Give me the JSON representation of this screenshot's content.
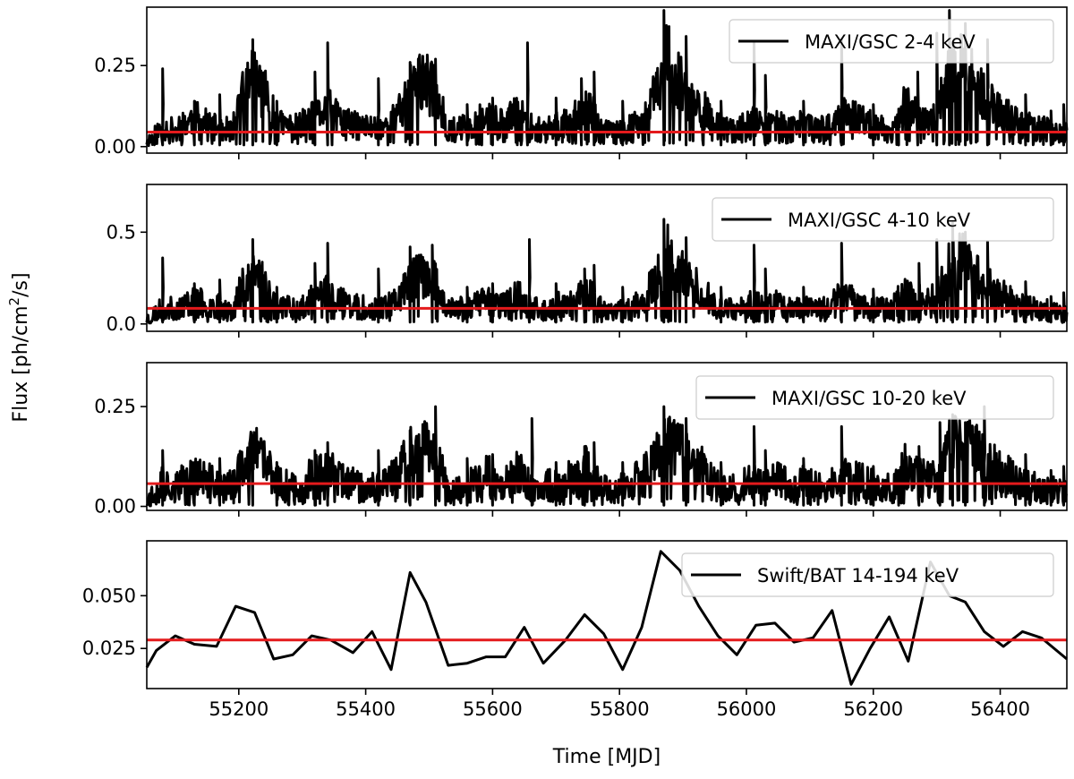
{
  "figure": {
    "xlabel": "Time [MJD]",
    "ylabel_prefix": "Flux [ph/cm",
    "ylabel_sup": "2",
    "ylabel_suffix": "/s]"
  },
  "chart_data": [
    {
      "type": "line",
      "legend": "MAXI/GSC 2-4 keV",
      "xlim": [
        55055,
        56505
      ],
      "ylim": [
        -0.02,
        0.43
      ],
      "xticks": [
        55200,
        55400,
        55600,
        55800,
        56000,
        56200,
        56400
      ],
      "yticks": [
        0.0,
        0.25
      ],
      "ytick_labels": [
        "0.00",
        "0.25"
      ],
      "mean": 0.045,
      "base": 0.05,
      "noise": 0.04,
      "floor": 0.005,
      "seed": 11,
      "x": [
        55060,
        55080,
        55100,
        55130,
        55160,
        55190,
        55205,
        55222,
        55240,
        55260,
        55290,
        55320,
        55340,
        55360,
        55390,
        55420,
        55450,
        55470,
        55490,
        55510,
        55530,
        55560,
        55590,
        55620,
        55640,
        55660,
        55680,
        55700,
        55730,
        55750,
        55770,
        55790,
        55810,
        55840,
        55860,
        55875,
        55890,
        55910,
        55930,
        55950,
        55970,
        55990,
        56010,
        56030,
        56050,
        56070,
        56090,
        56110,
        56130,
        56150,
        56170,
        56190,
        56210,
        56230,
        56250,
        56280,
        56300,
        56320,
        56340,
        56360,
        56380,
        56400,
        56420,
        56450,
        56480,
        56500
      ],
      "y": [
        0.02,
        0.06,
        0.05,
        0.09,
        0.06,
        0.05,
        0.15,
        0.22,
        0.17,
        0.07,
        0.06,
        0.09,
        0.12,
        0.08,
        0.06,
        0.06,
        0.09,
        0.18,
        0.2,
        0.17,
        0.05,
        0.06,
        0.09,
        0.07,
        0.11,
        0.06,
        0.05,
        0.07,
        0.09,
        0.13,
        0.06,
        0.04,
        0.05,
        0.09,
        0.17,
        0.27,
        0.21,
        0.15,
        0.12,
        0.07,
        0.05,
        0.06,
        0.08,
        0.06,
        0.08,
        0.05,
        0.07,
        0.05,
        0.06,
        0.1,
        0.09,
        0.07,
        0.06,
        0.05,
        0.13,
        0.08,
        0.1,
        0.21,
        0.24,
        0.19,
        0.14,
        0.11,
        0.08,
        0.06,
        0.05,
        0.04
      ],
      "spikes": [
        [
          55080,
          0.24
        ],
        [
          55130,
          0.14
        ],
        [
          55170,
          0.16
        ],
        [
          55222,
          0.33
        ],
        [
          55260,
          0.14
        ],
        [
          55320,
          0.23
        ],
        [
          55340,
          0.32
        ],
        [
          55420,
          0.21
        ],
        [
          55470,
          0.26
        ],
        [
          55510,
          0.27
        ],
        [
          55560,
          0.13
        ],
        [
          55600,
          0.15
        ],
        [
          55655,
          0.32
        ],
        [
          55700,
          0.15
        ],
        [
          55740,
          0.21
        ],
        [
          55760,
          0.23
        ],
        [
          55805,
          0.14
        ],
        [
          55870,
          0.42
        ],
        [
          55905,
          0.34
        ],
        [
          55960,
          0.14
        ],
        [
          56012,
          0.32
        ],
        [
          56030,
          0.22
        ],
        [
          56090,
          0.14
        ],
        [
          56150,
          0.33
        ],
        [
          56200,
          0.13
        ],
        [
          56240,
          0.11
        ],
        [
          56270,
          0.23
        ],
        [
          56300,
          0.35
        ],
        [
          56320,
          0.42
        ],
        [
          56345,
          0.38
        ],
        [
          56380,
          0.33
        ],
        [
          56440,
          0.16
        ],
        [
          56480,
          0.11
        ],
        [
          56500,
          0.13
        ]
      ]
    },
    {
      "type": "line",
      "legend": "MAXI/GSC 4-10 keV",
      "xlim": [
        55055,
        56505
      ],
      "ylim": [
        -0.04,
        0.76
      ],
      "xticks": [
        55200,
        55400,
        55600,
        55800,
        56000,
        56200,
        56400
      ],
      "yticks": [
        0.0,
        0.5
      ],
      "ytick_labels": [
        "0.0",
        "0.5"
      ],
      "mean": 0.085,
      "base": 0.09,
      "noise": 0.07,
      "floor": 0.01,
      "seed": 23,
      "x": [
        55060,
        55080,
        55100,
        55130,
        55160,
        55190,
        55205,
        55222,
        55240,
        55260,
        55290,
        55320,
        55340,
        55360,
        55390,
        55420,
        55450,
        55470,
        55490,
        55510,
        55530,
        55560,
        55590,
        55620,
        55640,
        55660,
        55680,
        55700,
        55730,
        55750,
        55770,
        55790,
        55810,
        55840,
        55860,
        55875,
        55890,
        55910,
        55930,
        55950,
        55970,
        55990,
        56010,
        56030,
        56050,
        56070,
        56090,
        56110,
        56130,
        56150,
        56170,
        56190,
        56210,
        56230,
        56250,
        56280,
        56300,
        56320,
        56340,
        56360,
        56380,
        56400,
        56420,
        56450,
        56480,
        56500
      ],
      "y": [
        0.03,
        0.09,
        0.08,
        0.13,
        0.1,
        0.08,
        0.2,
        0.3,
        0.24,
        0.1,
        0.09,
        0.14,
        0.17,
        0.12,
        0.09,
        0.09,
        0.13,
        0.24,
        0.27,
        0.22,
        0.08,
        0.09,
        0.13,
        0.1,
        0.16,
        0.09,
        0.08,
        0.1,
        0.13,
        0.18,
        0.09,
        0.06,
        0.08,
        0.14,
        0.25,
        0.38,
        0.3,
        0.22,
        0.18,
        0.1,
        0.08,
        0.09,
        0.12,
        0.09,
        0.12,
        0.08,
        0.1,
        0.08,
        0.09,
        0.15,
        0.13,
        0.1,
        0.09,
        0.08,
        0.19,
        0.12,
        0.15,
        0.3,
        0.34,
        0.27,
        0.2,
        0.16,
        0.12,
        0.09,
        0.07,
        0.06
      ],
      "spikes": [
        [
          55080,
          0.36
        ],
        [
          55130,
          0.22
        ],
        [
          55170,
          0.24
        ],
        [
          55222,
          0.46
        ],
        [
          55260,
          0.2
        ],
        [
          55320,
          0.33
        ],
        [
          55340,
          0.44
        ],
        [
          55420,
          0.3
        ],
        [
          55470,
          0.42
        ],
        [
          55505,
          0.43
        ],
        [
          55560,
          0.2
        ],
        [
          55600,
          0.22
        ],
        [
          55658,
          0.46
        ],
        [
          55700,
          0.22
        ],
        [
          55745,
          0.3
        ],
        [
          55760,
          0.32
        ],
        [
          55805,
          0.2
        ],
        [
          55870,
          0.57
        ],
        [
          55905,
          0.47
        ],
        [
          55960,
          0.2
        ],
        [
          56012,
          0.43
        ],
        [
          56030,
          0.3
        ],
        [
          56090,
          0.2
        ],
        [
          56150,
          0.44
        ],
        [
          56200,
          0.19
        ],
        [
          56240,
          0.17
        ],
        [
          56272,
          0.33
        ],
        [
          56300,
          0.46
        ],
        [
          56325,
          0.55
        ],
        [
          56345,
          0.5
        ],
        [
          56380,
          0.45
        ],
        [
          56440,
          0.23
        ],
        [
          56480,
          0.15
        ],
        [
          56500,
          0.17
        ]
      ]
    },
    {
      "type": "line",
      "legend": "MAXI/GSC 10-20 keV",
      "xlim": [
        55055,
        56505
      ],
      "ylim": [
        -0.01,
        0.36
      ],
      "xticks": [
        55200,
        55400,
        55600,
        55800,
        56000,
        56200,
        56400
      ],
      "yticks": [
        0.0,
        0.25
      ],
      "ytick_labels": [
        "0.00",
        "0.25"
      ],
      "mean": 0.057,
      "base": 0.06,
      "noise": 0.045,
      "floor": 0.003,
      "seed": 37,
      "x": [
        55060,
        55080,
        55100,
        55130,
        55160,
        55190,
        55205,
        55222,
        55240,
        55260,
        55290,
        55320,
        55340,
        55360,
        55390,
        55420,
        55450,
        55470,
        55490,
        55510,
        55530,
        55560,
        55590,
        55620,
        55640,
        55660,
        55680,
        55700,
        55730,
        55750,
        55770,
        55790,
        55810,
        55840,
        55860,
        55875,
        55890,
        55910,
        55930,
        55950,
        55970,
        55990,
        56010,
        56030,
        56050,
        56070,
        56090,
        56110,
        56130,
        56150,
        56170,
        56190,
        56210,
        56230,
        56250,
        56280,
        56300,
        56320,
        56340,
        56360,
        56380,
        56400,
        56420,
        56450,
        56480,
        56500
      ],
      "y": [
        0.02,
        0.06,
        0.05,
        0.08,
        0.06,
        0.05,
        0.1,
        0.14,
        0.11,
        0.06,
        0.05,
        0.08,
        0.09,
        0.07,
        0.05,
        0.05,
        0.08,
        0.13,
        0.15,
        0.12,
        0.05,
        0.05,
        0.08,
        0.06,
        0.09,
        0.05,
        0.05,
        0.06,
        0.08,
        0.1,
        0.05,
        0.04,
        0.05,
        0.08,
        0.13,
        0.18,
        0.15,
        0.12,
        0.1,
        0.06,
        0.05,
        0.05,
        0.07,
        0.05,
        0.07,
        0.05,
        0.06,
        0.05,
        0.05,
        0.08,
        0.07,
        0.06,
        0.05,
        0.05,
        0.1,
        0.07,
        0.08,
        0.15,
        0.17,
        0.14,
        0.11,
        0.09,
        0.07,
        0.05,
        0.04,
        0.04
      ],
      "spikes": [
        [
          55080,
          0.14
        ],
        [
          55130,
          0.11
        ],
        [
          55170,
          0.12
        ],
        [
          55222,
          0.17
        ],
        [
          55260,
          0.11
        ],
        [
          55320,
          0.14
        ],
        [
          55340,
          0.16
        ],
        [
          55420,
          0.14
        ],
        [
          55470,
          0.19
        ],
        [
          55510,
          0.25
        ],
        [
          55560,
          0.12
        ],
        [
          55600,
          0.13
        ],
        [
          55662,
          0.22
        ],
        [
          55700,
          0.11
        ],
        [
          55745,
          0.15
        ],
        [
          55760,
          0.16
        ],
        [
          55805,
          0.11
        ],
        [
          55870,
          0.25
        ],
        [
          55905,
          0.22
        ],
        [
          55960,
          0.11
        ],
        [
          56012,
          0.2
        ],
        [
          56030,
          0.14
        ],
        [
          56090,
          0.12
        ],
        [
          56150,
          0.2
        ],
        [
          56200,
          0.1
        ],
        [
          56240,
          0.09
        ],
        [
          56272,
          0.15
        ],
        [
          56305,
          0.21
        ],
        [
          56325,
          0.23
        ],
        [
          56345,
          0.21
        ],
        [
          56375,
          0.25
        ],
        [
          56440,
          0.13
        ],
        [
          56480,
          0.09
        ],
        [
          56500,
          0.1
        ]
      ]
    },
    {
      "type": "line",
      "legend": "Swift/BAT 14-194 keV",
      "xlim": [
        55055,
        56505
      ],
      "ylim": [
        0.006,
        0.076
      ],
      "xticks": [
        55200,
        55400,
        55600,
        55800,
        56000,
        56200,
        56400
      ],
      "xtick_labels": [
        "55200",
        "55400",
        "55600",
        "55800",
        "56000",
        "56200",
        "56400"
      ],
      "yticks": [
        0.025,
        0.05
      ],
      "ytick_labels": [
        "0.025",
        "0.050"
      ],
      "mean": 0.029,
      "x": [
        55055,
        55070,
        55100,
        55130,
        55165,
        55195,
        55225,
        55255,
        55285,
        55315,
        55345,
        55380,
        55410,
        55440,
        55470,
        55495,
        55530,
        55560,
        55590,
        55620,
        55650,
        55680,
        55715,
        55745,
        55775,
        55805,
        55835,
        55865,
        55895,
        55925,
        55955,
        55985,
        56015,
        56045,
        56075,
        56105,
        56135,
        56165,
        56195,
        56225,
        56255,
        56290,
        56320,
        56345,
        56375,
        56405,
        56435,
        56465,
        56505
      ],
      "y": [
        0.016,
        0.024,
        0.031,
        0.027,
        0.026,
        0.045,
        0.042,
        0.02,
        0.022,
        0.031,
        0.029,
        0.023,
        0.033,
        0.015,
        0.061,
        0.047,
        0.017,
        0.018,
        0.021,
        0.021,
        0.035,
        0.018,
        0.029,
        0.041,
        0.032,
        0.015,
        0.035,
        0.071,
        0.062,
        0.045,
        0.031,
        0.022,
        0.036,
        0.037,
        0.028,
        0.03,
        0.043,
        0.008,
        0.025,
        0.04,
        0.019,
        0.066,
        0.05,
        0.047,
        0.033,
        0.026,
        0.033,
        0.03,
        0.02
      ]
    }
  ]
}
